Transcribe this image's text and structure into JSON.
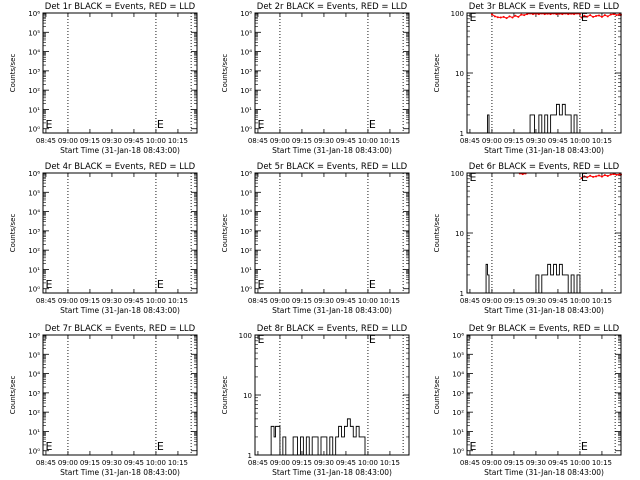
{
  "colors": {
    "events": "#000000",
    "lld": "#ff0000",
    "background": "#ffffff"
  },
  "chart_data": [
    {
      "type": "line",
      "title": "Det 1r BLACK = Events, RED = LLD",
      "xlabel": "Start Time (31-Jan-18 08:43:00)",
      "ylabel": "Counts/sec",
      "xticks": [
        "08:45",
        "09:00",
        "09:15",
        "09:30",
        "09:45",
        "10:00",
        "10:15"
      ],
      "yscale": "log",
      "ylim": [
        0.6,
        1000000
      ],
      "yticks": [
        "10⁰",
        "10¹",
        "10²",
        "10³",
        "10⁴",
        "10⁵",
        "10⁶"
      ],
      "xrange_min": [
        0,
        105
      ],
      "vlines_min": [
        17,
        77,
        101
      ],
      "markers": [
        {
          "text": "E",
          "x_min": 1,
          "y": 1.8
        },
        {
          "text": "E",
          "x_min": 77,
          "y": 1.8
        }
      ],
      "series": []
    },
    {
      "type": "line",
      "title": "Det 2r BLACK = Events, RED = LLD",
      "xlabel": "Start Time (31-Jan-18 08:43:00)",
      "ylabel": "Counts/sec",
      "xticks": [
        "08:45",
        "09:00",
        "09:15",
        "09:30",
        "09:45",
        "10:00",
        "10:15"
      ],
      "yscale": "log",
      "ylim": [
        0.6,
        1000000
      ],
      "yticks": [
        "10⁰",
        "10¹",
        "10²",
        "10³",
        "10⁴",
        "10⁵",
        "10⁶"
      ],
      "xrange_min": [
        0,
        105
      ],
      "vlines_min": [
        17,
        77,
        101
      ],
      "markers": [
        {
          "text": "E",
          "x_min": 1,
          "y": 1.8
        },
        {
          "text": "E",
          "x_min": 77,
          "y": 1.8
        }
      ],
      "series": []
    },
    {
      "type": "line",
      "title": "Det 3r BLACK = Events, RED = LLD",
      "xlabel": "Start Time (31-Jan-18 08:43:00)",
      "ylabel": "Counts/sec",
      "xticks": [
        "08:45",
        "09:00",
        "09:15",
        "09:30",
        "09:45",
        "10:00",
        "10:15"
      ],
      "yscale": "log",
      "ylim": [
        1,
        100
      ],
      "yticks": [
        "1",
        "10",
        "100"
      ],
      "xrange_min": [
        0,
        105
      ],
      "vlines_min": [
        17,
        77,
        101
      ],
      "markers": [
        {
          "text": "E",
          "x_min": 1,
          "y": 86
        },
        {
          "text": "E",
          "x_min": 77,
          "y": 86
        }
      ],
      "series": [
        {
          "color": "#000000",
          "step": true,
          "x": [
            0,
            12,
            14,
            15,
            17,
            41,
            43,
            46,
            49,
            51,
            53,
            55,
            57,
            59,
            61,
            63,
            65,
            67,
            69,
            71,
            73,
            75,
            77,
            105
          ],
          "y": [
            1,
            1,
            2,
            1,
            1,
            1,
            2,
            1,
            2,
            1,
            2,
            1,
            2,
            2,
            3,
            2,
            3,
            2,
            2,
            1,
            2,
            1,
            1,
            1
          ]
        },
        {
          "color": "#ff0000",
          "step": false,
          "x": [
            17,
            19,
            21,
            23,
            25,
            27,
            29,
            31,
            33,
            35,
            37,
            39,
            41,
            43,
            45,
            47,
            49,
            51,
            53,
            55,
            57,
            59,
            61,
            63,
            65,
            67,
            69,
            71,
            73,
            75,
            77
          ],
          "y": [
            95,
            88,
            85,
            84,
            86,
            82,
            88,
            84,
            90,
            86,
            94,
            92,
            96,
            98,
            96,
            97,
            96,
            98,
            96,
            97,
            96,
            98,
            96,
            97,
            96,
            98,
            96,
            97,
            96,
            98,
            96
          ]
        },
        {
          "color": "#ff0000",
          "step": false,
          "x": [
            78,
            80,
            82,
            84,
            86,
            88,
            90,
            92,
            94,
            96,
            98,
            100,
            102,
            104,
            105
          ],
          "y": [
            84,
            90,
            87,
            92,
            86,
            89,
            91,
            86,
            92,
            88,
            94,
            96,
            92,
            95,
            93
          ]
        }
      ]
    },
    {
      "type": "line",
      "title": "Det 4r BLACK = Events, RED = LLD",
      "xlabel": "Start Time (31-Jan-18 08:43:00)",
      "ylabel": "Counts/sec",
      "xticks": [
        "08:45",
        "09:00",
        "09:15",
        "09:30",
        "09:45",
        "10:00",
        "10:15"
      ],
      "yscale": "log",
      "ylim": [
        0.6,
        1000000
      ],
      "yticks": [
        "10⁰",
        "10¹",
        "10²",
        "10³",
        "10⁴",
        "10⁵",
        "10⁶"
      ],
      "xrange_min": [
        0,
        105
      ],
      "vlines_min": [
        17,
        77,
        101
      ],
      "markers": [
        {
          "text": "E",
          "x_min": 1,
          "y": 1.8
        },
        {
          "text": "E",
          "x_min": 77,
          "y": 1.8
        }
      ],
      "series": []
    },
    {
      "type": "line",
      "title": "Det 5r BLACK = Events, RED = LLD",
      "xlabel": "Start Time (31-Jan-18 08:43:00)",
      "ylabel": "Counts/sec",
      "xticks": [
        "08:45",
        "09:00",
        "09:15",
        "09:30",
        "09:45",
        "10:00",
        "10:15"
      ],
      "yscale": "log",
      "ylim": [
        0.6,
        1000000
      ],
      "yticks": [
        "10⁰",
        "10¹",
        "10²",
        "10³",
        "10⁴",
        "10⁵",
        "10⁶"
      ],
      "xrange_min": [
        0,
        105
      ],
      "vlines_min": [
        17,
        77,
        101
      ],
      "markers": [
        {
          "text": "E",
          "x_min": 1,
          "y": 1.8
        },
        {
          "text": "E",
          "x_min": 77,
          "y": 1.8
        }
      ],
      "series": []
    },
    {
      "type": "line",
      "title": "Det 6r BLACK = Events, RED = LLD",
      "xlabel": "Start Time (31-Jan-18 08:43:00)",
      "ylabel": "Counts/sec",
      "xticks": [
        "08:45",
        "09:00",
        "09:15",
        "09:30",
        "09:45",
        "10:00",
        "10:15"
      ],
      "yscale": "log",
      "ylim": [
        1,
        100
      ],
      "yticks": [
        "1",
        "10",
        "100"
      ],
      "xrange_min": [
        0,
        105
      ],
      "vlines_min": [
        17,
        77,
        101
      ],
      "markers": [
        {
          "text": "E",
          "x_min": 1,
          "y": 86
        },
        {
          "text": "E",
          "x_min": 77,
          "y": 86
        }
      ],
      "series": [
        {
          "color": "#000000",
          "step": true,
          "x": [
            0,
            12,
            13,
            14,
            15,
            17,
            44,
            47,
            49,
            51,
            53,
            55,
            57,
            59,
            61,
            63,
            65,
            67,
            69,
            71,
            73,
            75,
            77,
            105
          ],
          "y": [
            1,
            1,
            3,
            2,
            1,
            1,
            1,
            2,
            1,
            2,
            2,
            3,
            2,
            3,
            2,
            3,
            2,
            2,
            1,
            2,
            1,
            2,
            1,
            1
          ]
        },
        {
          "color": "#ff0000",
          "step": false,
          "x": [
            36,
            38,
            40
          ],
          "y": [
            98,
            96,
            98
          ]
        },
        {
          "color": "#ff0000",
          "step": false,
          "x": [
            78,
            80,
            82,
            84,
            86,
            88,
            90,
            92,
            94,
            96,
            98,
            100,
            102,
            104,
            105
          ],
          "y": [
            82,
            88,
            85,
            90,
            86,
            88,
            91,
            87,
            92,
            89,
            94,
            96,
            93,
            95,
            94
          ]
        }
      ]
    },
    {
      "type": "line",
      "title": "Det 7r BLACK = Events, RED = LLD",
      "xlabel": "Start Time (31-Jan-18 08:43:00)",
      "ylabel": "Counts/sec",
      "xticks": [
        "08:45",
        "09:00",
        "09:15",
        "09:30",
        "09:45",
        "10:00",
        "10:15"
      ],
      "yscale": "log",
      "ylim": [
        0.6,
        1000000
      ],
      "yticks": [
        "10⁰",
        "10¹",
        "10²",
        "10³",
        "10⁴",
        "10⁵",
        "10⁶"
      ],
      "xrange_min": [
        0,
        105
      ],
      "vlines_min": [
        17,
        77,
        101
      ],
      "markers": [
        {
          "text": "E",
          "x_min": 1,
          "y": 1.8
        },
        {
          "text": "E",
          "x_min": 77,
          "y": 1.8
        }
      ],
      "series": []
    },
    {
      "type": "line",
      "title": "Det 8r BLACK = Events, RED = LLD",
      "xlabel": "Start Time (31-Jan-18 08:43:00)",
      "ylabel": "Counts/sec",
      "xticks": [
        "08:45",
        "09:00",
        "09:15",
        "09:30",
        "09:45",
        "10:00",
        "10:15"
      ],
      "yscale": "log",
      "ylim": [
        1,
        100
      ],
      "yticks": [
        "1",
        "10",
        "100"
      ],
      "xrange_min": [
        0,
        105
      ],
      "vlines_min": [
        17,
        77,
        101
      ],
      "markers": [
        {
          "text": "E",
          "x_min": 1,
          "y": 86
        },
        {
          "text": "E",
          "x_min": 77,
          "y": 86
        }
      ],
      "series": [
        {
          "color": "#000000",
          "step": true,
          "x": [
            0,
            9,
            11,
            13,
            14,
            17,
            19,
            21,
            24,
            26,
            29,
            31,
            33,
            35,
            37,
            39,
            41,
            43,
            45,
            47,
            49,
            51,
            53,
            55,
            57,
            59,
            61,
            63,
            65,
            67,
            69,
            71,
            73,
            75,
            77,
            105
          ],
          "y": [
            1,
            1,
            3,
            2,
            3,
            1,
            2,
            1,
            1,
            2,
            1,
            2,
            1,
            2,
            1,
            2,
            2,
            1,
            2,
            2,
            1,
            2,
            1,
            2,
            3,
            2,
            3,
            4,
            3,
            2,
            3,
            2,
            2,
            1,
            1,
            1
          ]
        }
      ]
    },
    {
      "type": "line",
      "title": "Det 9r BLACK = Events, RED = LLD",
      "xlabel": "Start Time (31-Jan-18 08:43:00)",
      "ylabel": "Counts/sec",
      "xticks": [
        "08:45",
        "09:00",
        "09:15",
        "09:30",
        "09:45",
        "10:00",
        "10:15"
      ],
      "yscale": "log",
      "ylim": [
        0.6,
        1000000
      ],
      "yticks": [
        "10⁰",
        "10¹",
        "10²",
        "10³",
        "10⁴",
        "10⁵",
        "10⁶"
      ],
      "xrange_min": [
        0,
        105
      ],
      "vlines_min": [
        17,
        77,
        101
      ],
      "markers": [
        {
          "text": "E",
          "x_min": 1,
          "y": 1.8
        },
        {
          "text": "E",
          "x_min": 77,
          "y": 1.8
        }
      ],
      "series": []
    }
  ]
}
